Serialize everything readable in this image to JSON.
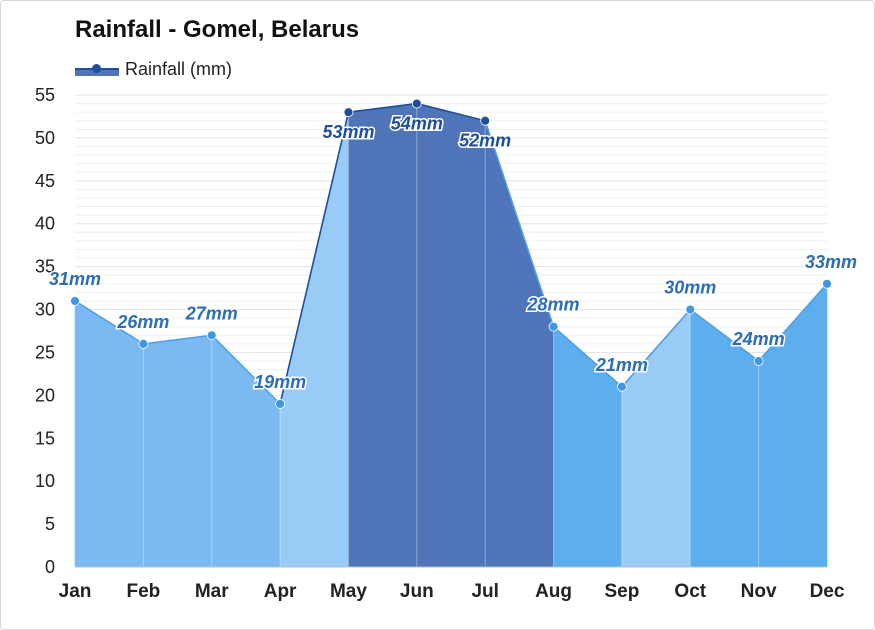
{
  "chart_data": {
    "type": "area",
    "title": "Rainfall - Gomel, Belarus",
    "legend": {
      "label": "Rainfall (mm)",
      "placement": "top-left"
    },
    "categories": [
      "Jan",
      "Feb",
      "Mar",
      "Apr",
      "May",
      "Jun",
      "Jul",
      "Aug",
      "Sep",
      "Oct",
      "Nov",
      "Dec"
    ],
    "series": [
      {
        "name": "Rainfall (mm)",
        "values": [
          31,
          26,
          27,
          19,
          53,
          54,
          52,
          28,
          21,
          30,
          24,
          33
        ]
      }
    ],
    "data_labels": [
      "31mm",
      "26mm",
      "27mm",
      "19mm",
      "53mm",
      "54mm",
      "52mm",
      "28mm",
      "21mm",
      "30mm",
      "24mm",
      "33mm"
    ],
    "ylim": [
      0,
      55
    ],
    "yticks": [
      0,
      5,
      10,
      15,
      20,
      25,
      30,
      35,
      40,
      45,
      50,
      55
    ],
    "grid": true,
    "xlabel": "",
    "ylabel": "",
    "segment_colors": [
      "#7bb9f2",
      "#7bb9f2",
      "#7bb9f2",
      "#99cbf7",
      "#4f75b8",
      "#4f75b8",
      "#4f75b8",
      "#5caeee",
      "#99cbf7",
      "#5caeee",
      "#5caeee",
      "#5caeee"
    ],
    "colors": {
      "line_dark": "#1f4e9a",
      "line_light": "#4fa0ea",
      "label_dark": "#1f4e9a",
      "label_light": "#2d6db5",
      "grid": "#e3e3e3"
    }
  }
}
